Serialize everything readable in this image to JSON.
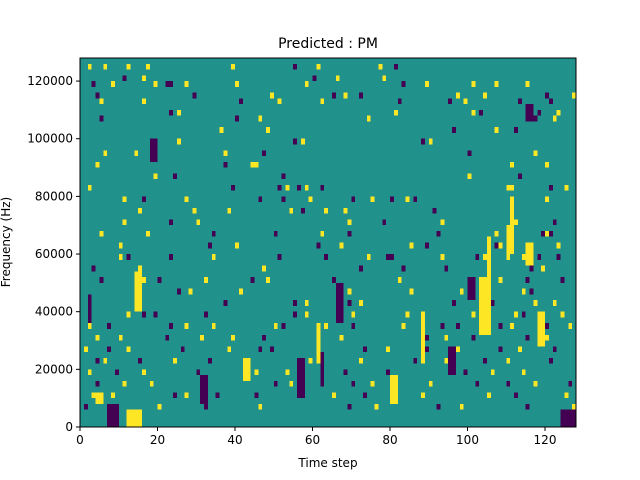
{
  "chart_data": {
    "type": "heatmap",
    "title": "Predicted : PM",
    "xlabel": "Time step",
    "ylabel": "Frequency (Hz)",
    "xlim": [
      0,
      128
    ],
    "ylim": [
      0,
      128000
    ],
    "n_time_steps": 128,
    "n_freq_bins": 64,
    "x_ticks": [
      0,
      20,
      40,
      60,
      80,
      100,
      120
    ],
    "y_ticks": [
      0,
      20000,
      40000,
      60000,
      80000,
      100000,
      120000
    ],
    "y_tick_labels": [
      "0",
      "20000",
      "40000",
      "60000",
      "80000",
      "100000",
      "120000"
    ],
    "grid": false,
    "legend": "none",
    "colors": {
      "background": "#21918c",
      "high": "#fde725",
      "low": "#440154"
    },
    "background_class": 0,
    "class_values": {
      "low": -1,
      "background": 0,
      "high": 1
    },
    "cells": [
      [
        2,
        62,
        1
      ],
      [
        6,
        62,
        1
      ],
      [
        12,
        62,
        1
      ],
      [
        17,
        62,
        1
      ],
      [
        39,
        62,
        1
      ],
      [
        55,
        62,
        -1
      ],
      [
        61,
        62,
        1
      ],
      [
        77,
        62,
        1
      ],
      [
        81,
        62,
        -1
      ],
      [
        11,
        60,
        -1
      ],
      [
        16,
        60,
        1
      ],
      [
        60,
        60,
        -1
      ],
      [
        66,
        60,
        1
      ],
      [
        78,
        60,
        1
      ],
      [
        3,
        59,
        -1
      ],
      [
        8,
        59,
        1
      ],
      [
        19,
        59,
        1
      ],
      [
        22,
        59,
        -1
      ],
      [
        23,
        59,
        -1
      ],
      [
        27,
        59,
        1
      ],
      [
        40,
        59,
        1
      ],
      [
        58,
        59,
        1
      ],
      [
        83,
        59,
        -1
      ],
      [
        89,
        59,
        1
      ],
      [
        101,
        59,
        1
      ],
      [
        107,
        59,
        1
      ],
      [
        115,
        59,
        1
      ],
      [
        4,
        57,
        -1
      ],
      [
        29,
        57,
        -1
      ],
      [
        49,
        57,
        1
      ],
      [
        65,
        57,
        -1
      ],
      [
        68,
        57,
        1
      ],
      [
        72,
        57,
        -1
      ],
      [
        97,
        57,
        1
      ],
      [
        104,
        57,
        1
      ],
      [
        120,
        57,
        -1
      ],
      [
        127,
        57,
        1
      ],
      [
        5,
        56,
        1
      ],
      [
        16,
        56,
        1
      ],
      [
        41,
        56,
        -1
      ],
      [
        51,
        56,
        1
      ],
      [
        62,
        56,
        1
      ],
      [
        82,
        56,
        -1
      ],
      [
        95,
        56,
        -1
      ],
      [
        99,
        56,
        1
      ],
      [
        113,
        56,
        -1
      ],
      [
        121,
        56,
        -1
      ],
      [
        23,
        54,
        -1
      ],
      [
        25,
        54,
        1
      ],
      [
        81,
        54,
        1
      ],
      [
        101,
        54,
        1
      ],
      [
        103,
        54,
        -1
      ],
      [
        118,
        54,
        -1
      ],
      [
        123,
        54,
        1
      ],
      [
        5,
        53,
        -1
      ],
      [
        40,
        53,
        -1
      ],
      [
        46,
        53,
        1
      ],
      [
        74,
        53,
        1
      ],
      [
        116,
        53,
        -1
      ],
      [
        117,
        53,
        -1
      ],
      [
        122,
        53,
        1
      ],
      [
        36,
        51,
        1
      ],
      [
        48,
        51,
        1
      ],
      [
        96,
        51,
        -1
      ],
      [
        107,
        51,
        1
      ],
      [
        112,
        51,
        -1
      ],
      [
        19,
        49,
        -1
      ],
      [
        25,
        49,
        1
      ],
      [
        55,
        49,
        -1
      ],
      [
        57,
        49,
        1
      ],
      [
        88,
        49,
        -1
      ],
      [
        90,
        49,
        1
      ],
      [
        6,
        47,
        1
      ],
      [
        14,
        47,
        1
      ],
      [
        37,
        47,
        1
      ],
      [
        47,
        47,
        -1
      ],
      [
        100,
        47,
        -1
      ],
      [
        117,
        47,
        1
      ],
      [
        4,
        45,
        1
      ],
      [
        37,
        45,
        -1
      ],
      [
        44,
        45,
        1
      ],
      [
        45,
        45,
        1
      ],
      [
        111,
        45,
        1
      ],
      [
        120,
        45,
        1
      ],
      [
        19,
        43,
        1
      ],
      [
        24,
        43,
        -1
      ],
      [
        52,
        43,
        -1
      ],
      [
        100,
        43,
        1
      ],
      [
        113,
        43,
        -1
      ],
      [
        2,
        41,
        1
      ],
      [
        39,
        41,
        -1
      ],
      [
        51,
        41,
        -1
      ],
      [
        53,
        41,
        1
      ],
      [
        56,
        41,
        -1
      ],
      [
        58,
        41,
        1
      ],
      [
        62,
        41,
        -1
      ],
      [
        110,
        41,
        1
      ],
      [
        111,
        41,
        1
      ],
      [
        121,
        41,
        -1
      ],
      [
        125,
        41,
        1
      ],
      [
        11,
        39,
        1
      ],
      [
        16,
        39,
        -1
      ],
      [
        27,
        39,
        1
      ],
      [
        46,
        39,
        -1
      ],
      [
        52,
        39,
        -1
      ],
      [
        59,
        39,
        1
      ],
      [
        70,
        39,
        -1
      ],
      [
        75,
        39,
        1
      ],
      [
        80,
        39,
        -1
      ],
      [
        84,
        39,
        1
      ],
      [
        86,
        39,
        -1
      ],
      [
        111,
        39,
        1
      ],
      [
        120,
        39,
        1
      ],
      [
        15,
        37,
        1
      ],
      [
        29,
        37,
        1
      ],
      [
        38,
        37,
        1
      ],
      [
        54,
        37,
        1
      ],
      [
        57,
        37,
        -1
      ],
      [
        63,
        37,
        1
      ],
      [
        68,
        37,
        1
      ],
      [
        91,
        37,
        -1
      ],
      [
        111,
        37,
        1
      ],
      [
        11,
        35,
        1
      ],
      [
        23,
        35,
        -1
      ],
      [
        30,
        35,
        1
      ],
      [
        69,
        35,
        1
      ],
      [
        78,
        35,
        -1
      ],
      [
        93,
        35,
        1
      ],
      [
        112,
        35,
        1
      ],
      [
        122,
        35,
        -1
      ],
      [
        5,
        33,
        1
      ],
      [
        17,
        33,
        1
      ],
      [
        34,
        33,
        -1
      ],
      [
        50,
        33,
        -1
      ],
      [
        62,
        33,
        1
      ],
      [
        69,
        33,
        -1
      ],
      [
        92,
        33,
        -1
      ],
      [
        107,
        33,
        1
      ],
      [
        119,
        33,
        -1
      ],
      [
        120,
        33,
        1
      ],
      [
        121,
        33,
        -1
      ],
      [
        10,
        31,
        1
      ],
      [
        33,
        31,
        -1
      ],
      [
        40,
        31,
        1
      ],
      [
        61,
        31,
        -1
      ],
      [
        67,
        31,
        1
      ],
      [
        85,
        31,
        1
      ],
      [
        89,
        31,
        -1
      ],
      [
        107,
        31,
        -1
      ],
      [
        108,
        31,
        1
      ],
      [
        123,
        31,
        1
      ],
      [
        10,
        29,
        1
      ],
      [
        12,
        29,
        -1
      ],
      [
        23,
        29,
        -1
      ],
      [
        34,
        29,
        1
      ],
      [
        51,
        29,
        -1
      ],
      [
        63,
        29,
        -1
      ],
      [
        74,
        29,
        1
      ],
      [
        79,
        29,
        -1
      ],
      [
        80,
        29,
        -1
      ],
      [
        93,
        29,
        1
      ],
      [
        102,
        29,
        -1
      ],
      [
        104,
        29,
        1
      ],
      [
        110,
        29,
        1
      ],
      [
        114,
        29,
        1
      ],
      [
        118,
        29,
        -1
      ],
      [
        123,
        29,
        -1
      ],
      [
        3,
        27,
        -1
      ],
      [
        15,
        27,
        1
      ],
      [
        47,
        27,
        1
      ],
      [
        72,
        27,
        -1
      ],
      [
        83,
        27,
        -1
      ],
      [
        94,
        27,
        -1
      ],
      [
        116,
        27,
        -1
      ],
      [
        119,
        27,
        1
      ],
      [
        5,
        25,
        -1
      ],
      [
        16,
        25,
        1
      ],
      [
        20,
        25,
        -1
      ],
      [
        32,
        25,
        1
      ],
      [
        44,
        25,
        -1
      ],
      [
        48,
        25,
        1
      ],
      [
        65,
        25,
        -1
      ],
      [
        82,
        25,
        1
      ],
      [
        108,
        25,
        1
      ],
      [
        115,
        25,
        -1
      ],
      [
        124,
        25,
        -1
      ],
      [
        14,
        23,
        1
      ],
      [
        15,
        23,
        1
      ],
      [
        25,
        23,
        -1
      ],
      [
        28,
        23,
        1
      ],
      [
        41,
        23,
        1
      ],
      [
        69,
        23,
        1
      ],
      [
        85,
        23,
        1
      ],
      [
        98,
        23,
        1
      ],
      [
        103,
        23,
        -1
      ],
      [
        104,
        23,
        1
      ],
      [
        105,
        23,
        -1
      ],
      [
        114,
        23,
        1
      ],
      [
        116,
        23,
        -1
      ],
      [
        14,
        21,
        1
      ],
      [
        37,
        21,
        -1
      ],
      [
        55,
        21,
        -1
      ],
      [
        58,
        21,
        1
      ],
      [
        67,
        21,
        1
      ],
      [
        69,
        21,
        -1
      ],
      [
        72,
        21,
        1
      ],
      [
        96,
        21,
        -1
      ],
      [
        106,
        21,
        -1
      ],
      [
        117,
        21,
        1
      ],
      [
        122,
        21,
        1
      ],
      [
        12,
        19,
        1
      ],
      [
        16,
        19,
        -1
      ],
      [
        19,
        19,
        -1
      ],
      [
        32,
        19,
        -1
      ],
      [
        55,
        19,
        -1
      ],
      [
        58,
        19,
        1
      ],
      [
        70,
        19,
        1
      ],
      [
        84,
        19,
        1
      ],
      [
        101,
        19,
        1
      ],
      [
        112,
        19,
        1
      ],
      [
        114,
        19,
        -1
      ],
      [
        119,
        19,
        -1
      ],
      [
        124,
        19,
        1
      ],
      [
        2,
        17,
        1
      ],
      [
        7,
        17,
        -1
      ],
      [
        23,
        17,
        -1
      ],
      [
        27,
        17,
        1
      ],
      [
        34,
        17,
        1
      ],
      [
        50,
        17,
        1
      ],
      [
        52,
        17,
        -1
      ],
      [
        63,
        17,
        1
      ],
      [
        70,
        17,
        -1
      ],
      [
        83,
        17,
        1
      ],
      [
        93,
        17,
        -1
      ],
      [
        97,
        17,
        -1
      ],
      [
        108,
        17,
        -1
      ],
      [
        111,
        17,
        1
      ],
      [
        120,
        17,
        -1
      ],
      [
        126,
        17,
        1
      ],
      [
        4,
        15,
        1
      ],
      [
        10,
        15,
        1
      ],
      [
        22,
        15,
        -1
      ],
      [
        31,
        15,
        1
      ],
      [
        39,
        15,
        1
      ],
      [
        47,
        15,
        -1
      ],
      [
        67,
        15,
        1
      ],
      [
        89,
        15,
        -1
      ],
      [
        94,
        15,
        1
      ],
      [
        101,
        15,
        -1
      ],
      [
        115,
        15,
        -1
      ],
      [
        120,
        15,
        1
      ],
      [
        1,
        13,
        1
      ],
      [
        7,
        13,
        -1
      ],
      [
        12,
        13,
        1
      ],
      [
        26,
        13,
        -1
      ],
      [
        38,
        13,
        1
      ],
      [
        46,
        13,
        -1
      ],
      [
        49,
        13,
        -1
      ],
      [
        61,
        13,
        1
      ],
      [
        73,
        13,
        -1
      ],
      [
        79,
        13,
        1
      ],
      [
        89,
        13,
        -1
      ],
      [
        97,
        13,
        1
      ],
      [
        108,
        13,
        -1
      ],
      [
        113,
        13,
        1
      ],
      [
        122,
        13,
        -1
      ],
      [
        4,
        11,
        -1
      ],
      [
        6,
        11,
        1
      ],
      [
        15,
        11,
        -1
      ],
      [
        24,
        11,
        1
      ],
      [
        33,
        11,
        -1
      ],
      [
        43,
        11,
        1
      ],
      [
        56,
        11,
        -1
      ],
      [
        59,
        11,
        1
      ],
      [
        72,
        11,
        1
      ],
      [
        86,
        11,
        -1
      ],
      [
        94,
        11,
        1
      ],
      [
        104,
        11,
        -1
      ],
      [
        110,
        11,
        1
      ],
      [
        121,
        11,
        -1
      ],
      [
        2,
        9,
        1
      ],
      [
        9,
        9,
        -1
      ],
      [
        16,
        9,
        1
      ],
      [
        30,
        9,
        -1
      ],
      [
        45,
        9,
        1
      ],
      [
        53,
        9,
        1
      ],
      [
        68,
        9,
        -1
      ],
      [
        79,
        9,
        -1
      ],
      [
        99,
        9,
        -1
      ],
      [
        106,
        9,
        1
      ],
      [
        114,
        9,
        1
      ],
      [
        4,
        7,
        -1
      ],
      [
        11,
        7,
        1
      ],
      [
        18,
        7,
        1
      ],
      [
        31,
        7,
        1
      ],
      [
        50,
        7,
        -1
      ],
      [
        54,
        7,
        1
      ],
      [
        70,
        7,
        -1
      ],
      [
        75,
        7,
        1
      ],
      [
        90,
        7,
        1
      ],
      [
        102,
        7,
        -1
      ],
      [
        110,
        7,
        -1
      ],
      [
        117,
        7,
        1
      ],
      [
        126,
        7,
        -1
      ],
      [
        3,
        5,
        1
      ],
      [
        8,
        5,
        1
      ],
      [
        24,
        5,
        -1
      ],
      [
        27,
        5,
        1
      ],
      [
        35,
        5,
        -1
      ],
      [
        45,
        5,
        -1
      ],
      [
        65,
        5,
        1
      ],
      [
        73,
        5,
        -1
      ],
      [
        88,
        5,
        1
      ],
      [
        105,
        5,
        1
      ],
      [
        112,
        5,
        -1
      ],
      [
        125,
        5,
        1
      ],
      [
        1,
        3,
        -1
      ],
      [
        20,
        3,
        1
      ],
      [
        32,
        3,
        -1
      ],
      [
        46,
        3,
        1
      ],
      [
        69,
        3,
        -1
      ],
      [
        76,
        3,
        1
      ],
      [
        92,
        3,
        -1
      ],
      [
        98,
        3,
        1
      ],
      [
        115,
        3,
        -1
      ],
      [
        127,
        3,
        1
      ]
    ],
    "runs": [
      [
        61,
        62,
        11,
        18,
        1
      ],
      [
        66,
        68,
        18,
        25,
        -1
      ],
      [
        103,
        106,
        16,
        26,
        1
      ],
      [
        105,
        106,
        26,
        33,
        1
      ],
      [
        110,
        112,
        30,
        35,
        1
      ],
      [
        111,
        112,
        35,
        40,
        1
      ],
      [
        14,
        16,
        20,
        27,
        1
      ],
      [
        56,
        58,
        5,
        12,
        -1
      ],
      [
        62,
        63,
        7,
        13,
        -1
      ],
      [
        88,
        89,
        11,
        20,
        1
      ],
      [
        115,
        117,
        28,
        32,
        1
      ],
      [
        118,
        120,
        14,
        20,
        1
      ],
      [
        100,
        102,
        22,
        26,
        -1
      ],
      [
        80,
        82,
        4,
        9,
        1
      ],
      [
        95,
        97,
        9,
        14,
        -1
      ],
      [
        42,
        44,
        8,
        12,
        1
      ],
      [
        31,
        33,
        4,
        9,
        -1
      ],
      [
        7,
        10,
        0,
        4,
        -1
      ],
      [
        12,
        16,
        0,
        3,
        1
      ],
      [
        4,
        6,
        4,
        6,
        1
      ],
      [
        2,
        3,
        18,
        23,
        -1
      ],
      [
        124,
        128,
        0,
        3,
        -1
      ],
      [
        18,
        20,
        46,
        50,
        -1
      ],
      [
        115,
        117,
        53,
        56,
        -1
      ]
    ]
  }
}
